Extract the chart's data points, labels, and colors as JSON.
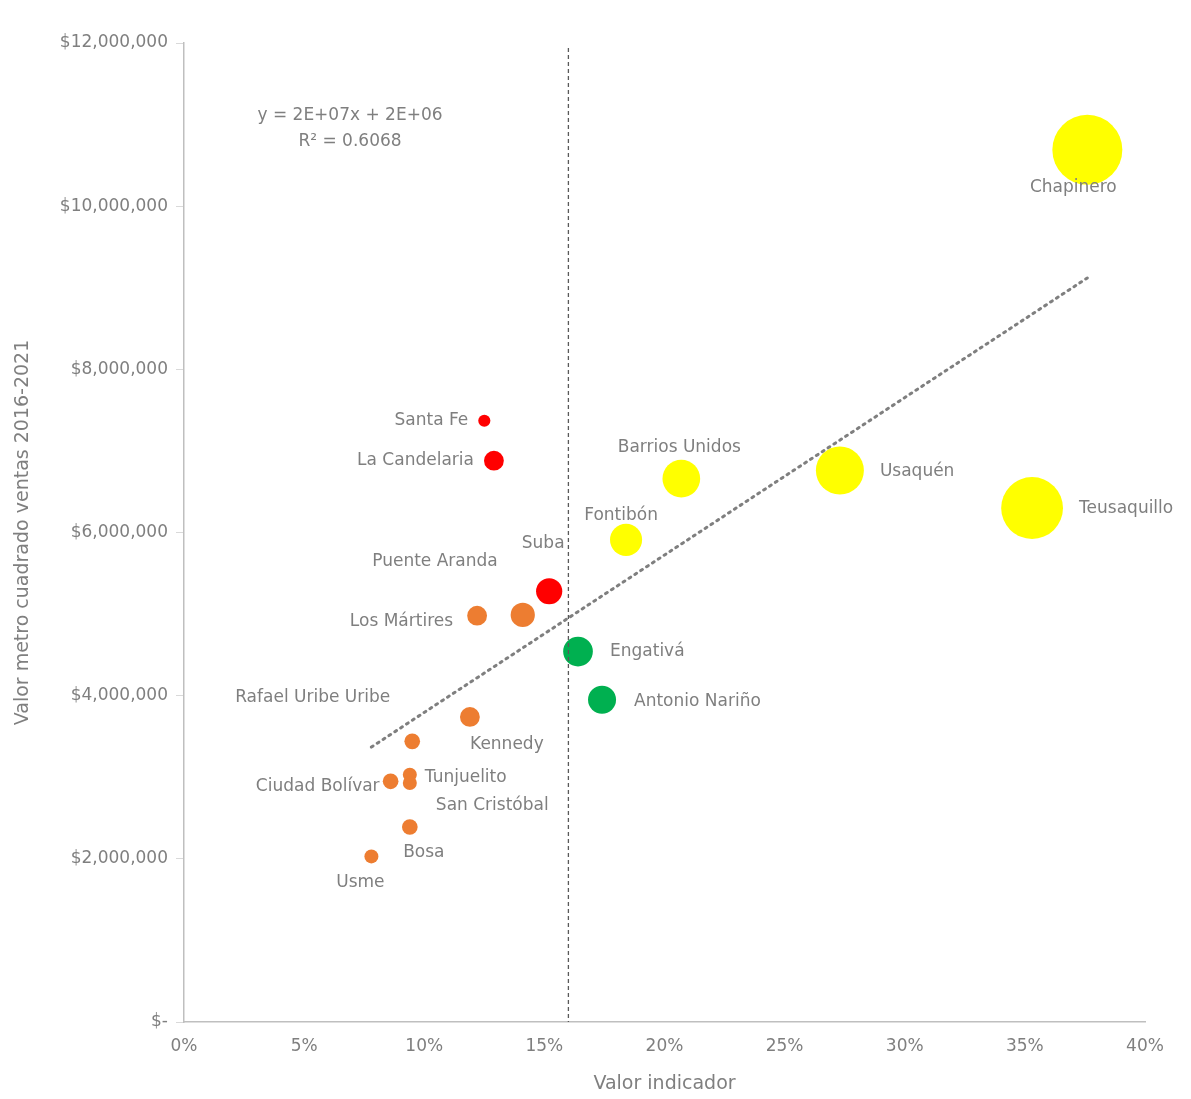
{
  "chart_data": {
    "type": "bubble",
    "xlabel": "Valor indicador",
    "ylabel": "Valor metro cuadrado ventas 2016-2021",
    "xlim": [
      0,
      40
    ],
    "xticks": [
      {
        "value": 0,
        "label": "0%"
      },
      {
        "value": 5,
        "label": "5%"
      },
      {
        "value": 10,
        "label": "10%"
      },
      {
        "value": 15,
        "label": "15%"
      },
      {
        "value": 20,
        "label": "20%"
      },
      {
        "value": 25,
        "label": "25%"
      },
      {
        "value": 30,
        "label": "30%"
      },
      {
        "value": 35,
        "label": "35%"
      },
      {
        "value": 40,
        "label": "40%"
      }
    ],
    "ylim": [
      0,
      12000000
    ],
    "yticks": [
      {
        "value": 0,
        "label": "$-"
      },
      {
        "value": 2000000,
        "label": "$2,000,000"
      },
      {
        "value": 4000000,
        "label": "$4,000,000"
      },
      {
        "value": 6000000,
        "label": "$6,000,000"
      },
      {
        "value": 8000000,
        "label": "$8,000,000"
      },
      {
        "value": 10000000,
        "label": "$10,000,000"
      },
      {
        "value": 12000000,
        "label": "$12,000,000"
      }
    ],
    "grid": false,
    "legend": false,
    "series": [
      {
        "x": [
          12.5,
          12.9,
          15.2,
          14.1,
          12.2,
          16.4,
          17.4,
          11.9,
          9.5,
          9.4,
          9.4,
          8.6,
          9.4,
          7.8,
          18.4,
          20.7,
          27.3,
          35.3,
          37.6
        ],
        "values": [
          7370000,
          6880000,
          5280000,
          4990000,
          4980000,
          4540000,
          3950000,
          3740000,
          3440000,
          3030000,
          2930000,
          2950000,
          2390000,
          2030000,
          5910000,
          6660000,
          6760000,
          6300000,
          10690000
        ],
        "sizes": [
          0.03,
          0.08,
          0.14,
          0.12,
          0.08,
          0.18,
          0.16,
          0.08,
          0.05,
          0.04,
          0.04,
          0.05,
          0.05,
          0.04,
          0.21,
          0.29,
          0.47,
          0.78,
          1
        ],
        "colors": [
          "#ff0000",
          "#ff0000",
          "#ff0000",
          "#ed7d31",
          "#ed7d31",
          "#00b050",
          "#00b050",
          "#ed7d31",
          "#ed7d31",
          "#ed7d31",
          "#ed7d31",
          "#ed7d31",
          "#ed7d31",
          "#ed7d31",
          "#ffff00",
          "#ffff00",
          "#ffff00",
          "#ffff00",
          "#ffff00"
        ]
      },
      {
        "type": "line",
        "x": [
          7.8,
          37.6
        ],
        "values": [
          3370000,
          9120000
        ],
        "color": "#7f7f7f",
        "line_style": "dotted",
        "marker": "none"
      }
    ],
    "ref_lines": [
      {
        "axis": "x",
        "value": 16,
        "color": "#595959",
        "line_style": "dashed"
      }
    ],
    "annotations": [
      "y = 2E+07x + 2E+06",
      "R² = 0.6068",
      {
        "text": "Santa Fe",
        "x": 12.5,
        "y": 7370000
      },
      {
        "text": "La Candelaria",
        "x": 12.9,
        "y": 6880000
      },
      {
        "text": "Suba",
        "x": 15.2,
        "y": 5280000
      },
      {
        "text": "Puente Aranda",
        "x": 14.1,
        "y": 4990000
      },
      {
        "text": "Los Mártires",
        "x": 12.2,
        "y": 4980000
      },
      {
        "text": "Engativá",
        "x": 16.4,
        "y": 4540000
      },
      {
        "text": "Antonio Nariño",
        "x": 17.4,
        "y": 3950000
      },
      {
        "text": "Kennedy",
        "x": 11.9,
        "y": 3740000
      },
      {
        "text": "Rafael Uribe Uribe",
        "x": 9.5,
        "y": 3440000
      },
      {
        "text": "Tunjuelito",
        "x": 9.4,
        "y": 3030000
      },
      {
        "text": "San Cristóbal",
        "x": 9.4,
        "y": 2930000
      },
      {
        "text": "Ciudad Bolívar",
        "x": 8.6,
        "y": 2950000
      },
      {
        "text": "Bosa",
        "x": 9.4,
        "y": 2390000
      },
      {
        "text": "Usme",
        "x": 7.8,
        "y": 2030000
      },
      {
        "text": "Fontibón",
        "x": 18.4,
        "y": 5910000
      },
      {
        "text": "Barrios Unidos",
        "x": 20.7,
        "y": 6660000
      },
      {
        "text": "Usaquén",
        "x": 27.3,
        "y": 6760000
      },
      {
        "text": "Teusaquillo",
        "x": 35.3,
        "y": 6300000
      },
      {
        "text": "Chapinero",
        "x": 37.6,
        "y": 10690000
      }
    ]
  }
}
